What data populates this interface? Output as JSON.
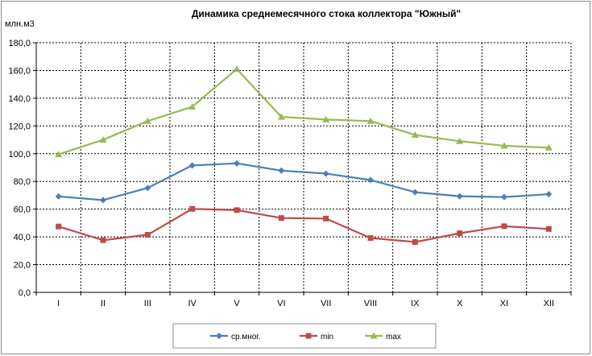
{
  "chart_data": {
    "type": "line",
    "title": "Динамика среднемесячного стока коллектора \"Южный\"",
    "ylabel": "млн.м3",
    "xlabel": "",
    "categories": [
      "I",
      "II",
      "III",
      "IV",
      "V",
      "VI",
      "VII",
      "VIII",
      "IX",
      "X",
      "XI",
      "XII"
    ],
    "ylim": [
      0,
      180
    ],
    "yticks": [
      "0,0",
      "20,0",
      "40,0",
      "60,0",
      "80,0",
      "100,0",
      "120,0",
      "140,0",
      "160,0",
      "180,0"
    ],
    "grid": true,
    "legend_position": "bottom",
    "series": [
      {
        "name": "ср.мног.",
        "color": "#4a7ebb",
        "marker": "diamond",
        "values": [
          69.2,
          66.5,
          75.3,
          91.5,
          93.0,
          87.8,
          85.6,
          81.0,
          72.2,
          69.3,
          68.7,
          70.8
        ]
      },
      {
        "name": "min",
        "color": "#be4b48",
        "marker": "square",
        "values": [
          47.5,
          37.6,
          41.5,
          60.2,
          59.3,
          53.6,
          53.2,
          39.2,
          36.3,
          42.6,
          47.7,
          45.7
        ]
      },
      {
        "name": "max",
        "color": "#98b954",
        "marker": "triangle",
        "values": [
          99.5,
          110.0,
          123.5,
          133.8,
          161.0,
          126.5,
          124.6,
          123.5,
          113.5,
          109.0,
          105.7,
          104.3
        ]
      }
    ]
  }
}
